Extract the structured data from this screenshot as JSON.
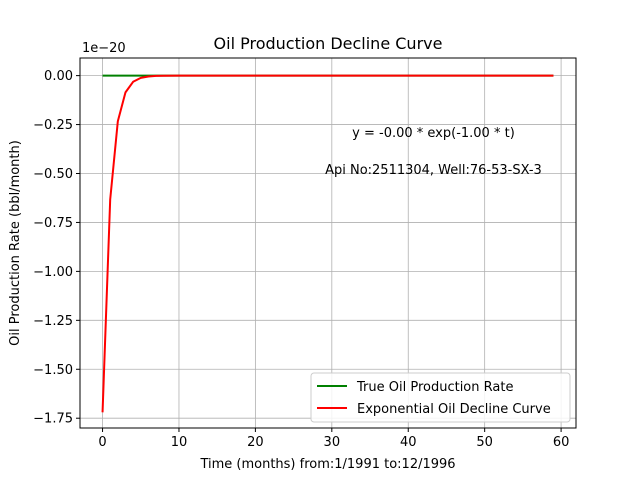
{
  "chart_data": {
    "type": "line",
    "title": "Oil Production Decline Curve",
    "xlabel": "Time (months) from:1/1991 to:12/1996",
    "ylabel": "Oil Production Rate (bbl/month)",
    "y_offset_label": "1e−20",
    "xlim": [
      -2.95,
      61.95
    ],
    "ylim": [
      -1.8,
      0.09
    ],
    "grid": true,
    "legend_position": "lower-right",
    "x_ticks": [
      0,
      10,
      20,
      30,
      40,
      50,
      60
    ],
    "x_tick_labels": [
      "0",
      "10",
      "20",
      "30",
      "40",
      "50",
      "60"
    ],
    "y_ticks": [
      0.0,
      -0.25,
      -0.5,
      -0.75,
      -1.0,
      -1.25,
      -1.5,
      -1.75
    ],
    "y_tick_labels": [
      "0.00",
      "−0.25",
      "−0.50",
      "−0.75",
      "−1.00",
      "−1.25",
      "−1.50",
      "−1.75"
    ],
    "annotations": [
      {
        "text": "y = -0.00 * exp(-1.00 * t)",
        "x": 43.3,
        "y": -0.29
      },
      {
        "text": "Api No:2511304, Well:76-53-SX-3",
        "x": 43.3,
        "y": -0.48
      }
    ],
    "series": [
      {
        "name": "True Oil Production Rate",
        "color": "#008000",
        "x": [
          0,
          59
        ],
        "y": [
          0,
          0
        ]
      },
      {
        "name": "Exponential Oil Decline Curve",
        "color": "#ff0000",
        "x": [
          0,
          1,
          2,
          3,
          4,
          5,
          6,
          7,
          8,
          10,
          15,
          20,
          30,
          40,
          50,
          59
        ],
        "y": [
          -1.72,
          -0.633,
          -0.233,
          -0.0856,
          -0.0315,
          -0.0116,
          -0.0043,
          -0.0016,
          -0.0006,
          0,
          0,
          0,
          0,
          0,
          0,
          0
        ]
      }
    ]
  }
}
